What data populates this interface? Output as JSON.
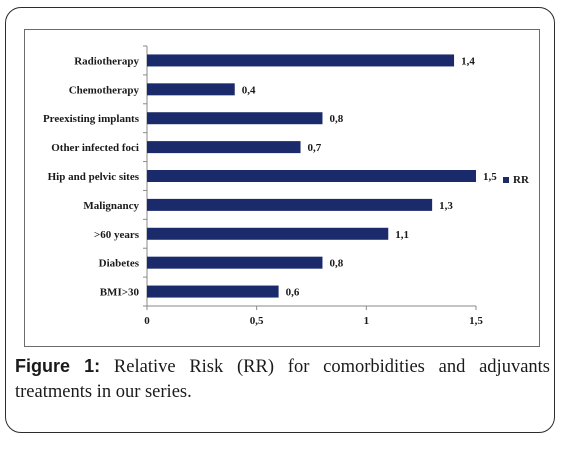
{
  "chart_data": {
    "type": "bar",
    "orientation": "horizontal",
    "categories": [
      "Radiotherapy",
      "Chemotherapy",
      "Preexisting implants",
      "Other infected foci",
      "Hip and pelvic sites",
      "Malignancy",
      ">60 years",
      "Diabetes",
      "BMI>30"
    ],
    "values": [
      1.4,
      0.4,
      0.8,
      0.7,
      1.5,
      1.3,
      1.1,
      0.8,
      0.6
    ],
    "value_labels": [
      "1,4",
      "0,4",
      "0,8",
      "0,7",
      "1,5",
      "1,3",
      "1,1",
      "0,8",
      "0,6"
    ],
    "series": [
      {
        "name": "RR",
        "values": [
          1.4,
          0.4,
          0.8,
          0.7,
          1.5,
          1.3,
          1.1,
          0.8,
          0.6
        ]
      }
    ],
    "x_ticks": [
      0,
      0.5,
      1,
      1.5
    ],
    "x_tick_labels": [
      "0",
      "0,5",
      "1",
      "1,5"
    ],
    "xlim": [
      0,
      1.5
    ],
    "legend": "right",
    "grid": false,
    "colors": {
      "bar": "#1b2a6b",
      "axis": "#8a8a8a",
      "text": "#1a1a1a"
    }
  },
  "caption": {
    "label": "Figure 1:",
    "text": " Relative Risk (RR) for comorbidities and adjuvants treatments in our series."
  }
}
